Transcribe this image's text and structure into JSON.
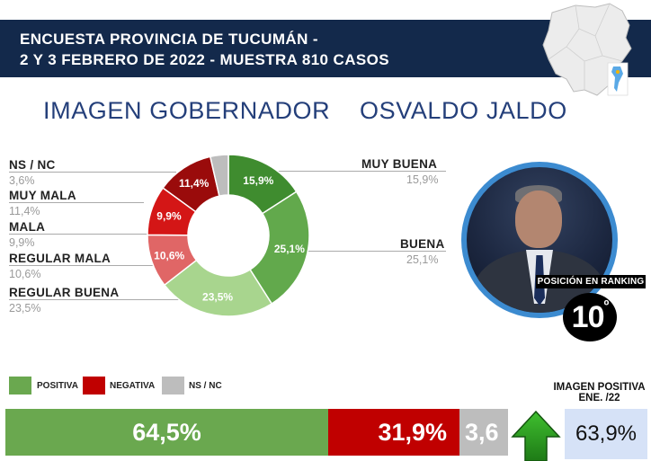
{
  "header": {
    "line1": "ENCUESTA PROVINCIA DE TUCUMÁN -",
    "line2": "2 Y 3 FEBRERO DE 2022  - MUESTRA 810 CASOS"
  },
  "title": {
    "left": "IMAGEN GOBERNADOR",
    "right": "OSVALDO JALDO"
  },
  "chart_data": [
    {
      "type": "pie",
      "categories": [
        "MUY BUENA",
        "BUENA",
        "REGULAR BUENA",
        "REGULAR MALA",
        "MALA",
        "MUY MALA",
        "NS / NC"
      ],
      "values": [
        15.9,
        25.1,
        23.5,
        10.6,
        9.9,
        11.4,
        3.6
      ],
      "labels": [
        "15,9%",
        "25,1%",
        "23,5%",
        "10,6%",
        "9,9%",
        "11,4%",
        "3,6%"
      ],
      "colors": [
        "#3f8c2f",
        "#62a94c",
        "#a8d58e",
        "#e06666",
        "#d41616",
        "#9a0b0b",
        "#bdbdbd"
      ],
      "donut": true
    },
    {
      "type": "bar",
      "orientation": "horizontal-stacked",
      "categories": [
        "POSITIVA",
        "NEGATIVA",
        "NS / NC"
      ],
      "values": [
        64.5,
        31.9,
        3.6
      ],
      "labels": [
        "64,5%",
        "31,9%",
        "3,6"
      ],
      "colors": [
        "#6aa84f",
        "#c00000",
        "#bdbdbd"
      ]
    }
  ],
  "legend": [
    {
      "label": "POSITIVA",
      "color": "#6aa84f"
    },
    {
      "label": "NEGATIVA",
      "color": "#c00000"
    },
    {
      "label": "NS / NC",
      "color": "#bdbdbd"
    }
  ],
  "side_labels": {
    "nsnc": {
      "name": "NS / NC",
      "value": "3,6%"
    },
    "muy_mala": {
      "name": "MUY MALA",
      "value": "11,4%"
    },
    "mala": {
      "name": "MALA",
      "value": "9,9%"
    },
    "regular_mala": {
      "name": "REGULAR MALA",
      "value": "10,6%"
    },
    "regular_buena": {
      "name": "REGULAR BUENA",
      "value": "23,5%"
    },
    "muy_buena": {
      "name": "MUY BUENA",
      "value": "15,9%"
    },
    "buena": {
      "name": "BUENA",
      "value": "25,1%"
    }
  },
  "ranking": {
    "label": "POSICIÓN EN RANKING",
    "number": "10",
    "suffix": "º"
  },
  "previous": {
    "label1": "IMAGEN POSITIVA",
    "label2": "ENE. /22",
    "value": "63,9%",
    "trend": "up-arrow-icon"
  },
  "colors": {
    "header_bg": "#13294b",
    "title": "#243f7a",
    "photo_ring": "#3c8bd0"
  }
}
